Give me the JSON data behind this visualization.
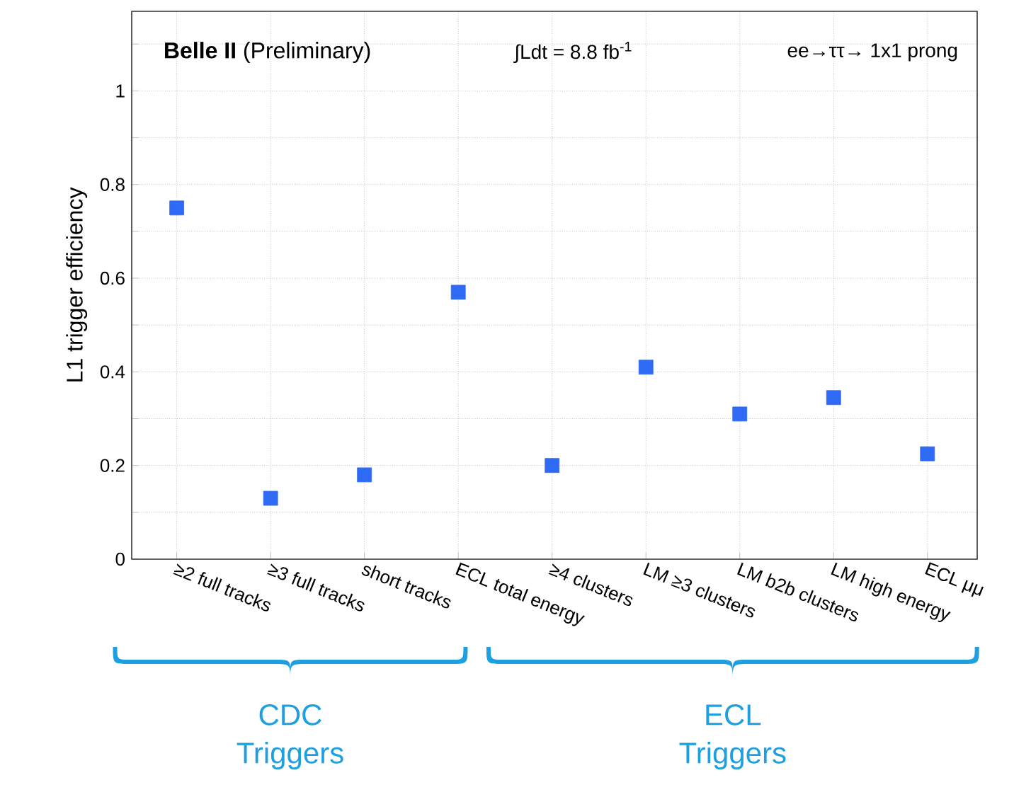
{
  "chart_data": {
    "type": "scatter",
    "title": "**Belle II** (Preliminary)",
    "ylabel": "L1 trigger efficiency",
    "annotations": [
      "∫Ldt = 8.8 fb$^{-1}$",
      "ee→ττ→ 1x1 prong",
      "CDC Triggers",
      "ECL Triggers"
    ],
    "categories": [
      "≥2 full tracks",
      "≥3 full tracks",
      "short tracks",
      "ECL total energy",
      "≥4 clusters",
      "LM ≥3 clusters",
      "LM b2b clusters",
      "LM high energy",
      "ECL μμ"
    ],
    "values": [
      0.75,
      0.13,
      0.18,
      0.57,
      0.2,
      0.41,
      0.31,
      0.345,
      0.225
    ],
    "color": "#2f6af5",
    "marker": "square",
    "ylim": [
      0,
      1.17
    ],
    "yticks": [
      0,
      {
        "value": 0.1,
        "label": null
      },
      0.2,
      {
        "value": 0.3,
        "label": null
      },
      0.4,
      {
        "value": 0.5,
        "label": null
      },
      0.6,
      {
        "value": 0.7,
        "label": null
      },
      0.8,
      {
        "value": 0.9,
        "label": null
      },
      1,
      {
        "value": 1.1,
        "label": null
      }
    ],
    "grid": true
  }
}
